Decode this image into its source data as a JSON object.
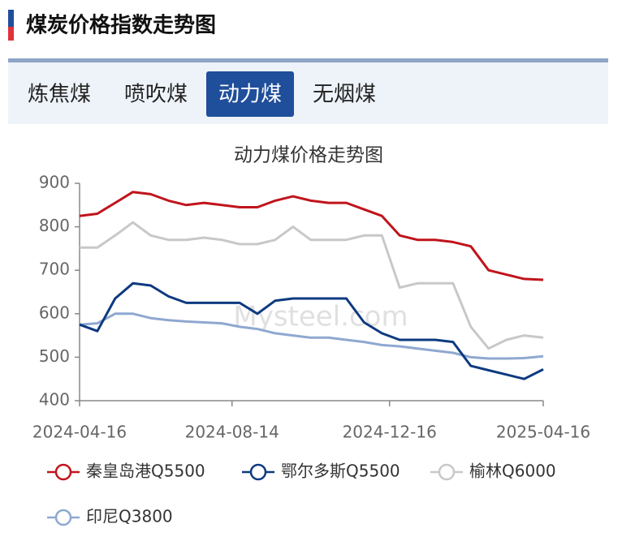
{
  "header": {
    "title": "煤炭价格指数走势图"
  },
  "tabs": [
    "炼焦煤",
    "喷吹煤",
    "动力煤",
    "无烟煤"
  ],
  "active_tab": 2,
  "watermark": "Mysteel.com",
  "chart_data": {
    "type": "line",
    "title": "动力煤价格走势图",
    "x": [
      "2024-04-16",
      "2024-04-30",
      "2024-05-14",
      "2024-05-28",
      "2024-06-11",
      "2024-06-25",
      "2024-07-09",
      "2024-07-23",
      "2024-08-06",
      "2024-08-20",
      "2024-09-03",
      "2024-09-17",
      "2024-10-01",
      "2024-10-15",
      "2024-10-29",
      "2024-11-12",
      "2024-11-26",
      "2024-12-10",
      "2024-12-24",
      "2025-01-07",
      "2025-01-21",
      "2025-02-04",
      "2025-02-18",
      "2025-03-04",
      "2025-03-18",
      "2025-04-01",
      "2025-04-16"
    ],
    "series": [
      {
        "name": "秦皇岛港Q5500",
        "color": "#c0141c",
        "values": [
          825,
          830,
          855,
          880,
          875,
          860,
          850,
          855,
          850,
          845,
          845,
          860,
          870,
          860,
          855,
          855,
          840,
          825,
          780,
          770,
          770,
          765,
          755,
          700,
          690,
          680,
          678
        ]
      },
      {
        "name": "鄂尔多斯Q5500",
        "color": "#0d3a80",
        "values": [
          575,
          560,
          635,
          670,
          665,
          640,
          625,
          625,
          625,
          625,
          600,
          630,
          635,
          635,
          635,
          635,
          580,
          555,
          540,
          540,
          540,
          535,
          480,
          470,
          460,
          450,
          472
        ]
      },
      {
        "name": "榆林Q6000",
        "color": "#c8c8c8",
        "values": [
          752,
          752,
          780,
          810,
          780,
          770,
          770,
          775,
          770,
          760,
          760,
          770,
          800,
          770,
          770,
          770,
          780,
          780,
          660,
          670,
          670,
          670,
          570,
          520,
          540,
          550,
          545
        ]
      },
      {
        "name": "印尼Q3800",
        "color": "#8fa8d0",
        "values": [
          575,
          578,
          600,
          600,
          590,
          585,
          582,
          580,
          578,
          570,
          565,
          555,
          550,
          545,
          545,
          540,
          535,
          528,
          525,
          520,
          515,
          510,
          500,
          497,
          497,
          498,
          502
        ]
      }
    ],
    "xlim": [
      "2024-04-16",
      "2025-04-16"
    ],
    "xticks": [
      "2024-04-16",
      "2024-08-14",
      "2024-12-16",
      "2025-04-16"
    ],
    "ylim": [
      400,
      900
    ],
    "yticks": [
      400,
      500,
      600,
      700,
      800,
      900
    ]
  }
}
